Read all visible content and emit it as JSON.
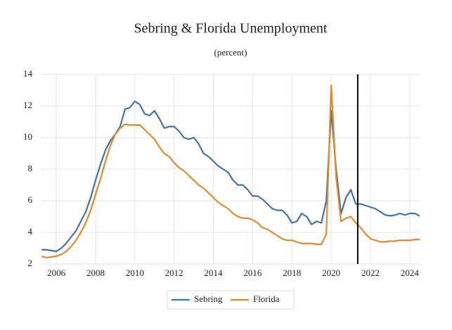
{
  "chart_data": {
    "type": "line",
    "title": "Sebring & Florida Unemployment",
    "subtitle": "(percent)",
    "x": [
      2005.25,
      2005.5,
      2005.75,
      2006,
      2006.25,
      2006.5,
      2006.75,
      2007,
      2007.25,
      2007.5,
      2007.75,
      2008,
      2008.25,
      2008.5,
      2008.75,
      2009,
      2009.25,
      2009.5,
      2009.75,
      2010,
      2010.25,
      2010.5,
      2010.75,
      2011,
      2011.25,
      2011.5,
      2011.75,
      2012,
      2012.25,
      2012.5,
      2012.75,
      2013,
      2013.25,
      2013.5,
      2013.75,
      2014,
      2014.25,
      2014.5,
      2014.75,
      2015,
      2015.25,
      2015.5,
      2015.75,
      2016,
      2016.25,
      2016.5,
      2016.75,
      2017,
      2017.25,
      2017.5,
      2017.75,
      2018,
      2018.25,
      2018.5,
      2018.75,
      2019,
      2019.25,
      2019.5,
      2019.75,
      2020,
      2020.25,
      2020.5,
      2020.75,
      2021,
      2021.25,
      2021.5,
      2021.75,
      2022,
      2022.25,
      2022.5,
      2022.75,
      2023,
      2023.25,
      2023.5,
      2023.75,
      2024,
      2024.25,
      2024.5
    ],
    "series": [
      {
        "name": "Sebring",
        "color": "#4472a8",
        "values": [
          2.9,
          2.9,
          2.85,
          2.8,
          3.0,
          3.3,
          3.7,
          4.1,
          4.7,
          5.3,
          6.2,
          7.3,
          8.3,
          9.2,
          9.8,
          10.2,
          10.7,
          11.8,
          11.9,
          12.3,
          12.1,
          11.5,
          11.4,
          11.7,
          11.2,
          10.6,
          10.7,
          10.7,
          10.4,
          10.0,
          9.9,
          10.0,
          9.6,
          9.0,
          8.8,
          8.5,
          8.2,
          8.0,
          7.8,
          7.3,
          7.0,
          7.0,
          6.7,
          6.3,
          6.3,
          6.1,
          5.8,
          5.5,
          5.4,
          5.4,
          5.1,
          4.6,
          4.7,
          5.2,
          5.0,
          4.5,
          4.7,
          4.6,
          6.0,
          11.7,
          8.0,
          5.2,
          6.2,
          6.7,
          5.8,
          5.8,
          5.7,
          5.6,
          5.5,
          5.3,
          5.1,
          5.05,
          5.1,
          5.2,
          5.1,
          5.2,
          5.2,
          5.05
        ]
      },
      {
        "name": "Florida",
        "color": "#e0892e",
        "values": [
          2.5,
          2.4,
          2.45,
          2.5,
          2.6,
          2.8,
          3.1,
          3.5,
          4.0,
          4.6,
          5.4,
          6.4,
          7.4,
          8.5,
          9.5,
          10.2,
          10.6,
          10.85,
          10.8,
          10.8,
          10.8,
          10.5,
          10.2,
          9.9,
          9.4,
          9.0,
          8.8,
          8.4,
          8.1,
          7.9,
          7.6,
          7.3,
          7.0,
          6.8,
          6.5,
          6.2,
          5.9,
          5.7,
          5.5,
          5.2,
          5.0,
          4.9,
          4.9,
          4.8,
          4.6,
          4.3,
          4.2,
          4.0,
          3.8,
          3.6,
          3.5,
          3.5,
          3.4,
          3.3,
          3.3,
          3.3,
          3.25,
          3.25,
          3.9,
          13.3,
          7.5,
          4.7,
          4.9,
          5.0,
          4.6,
          4.3,
          3.9,
          3.6,
          3.5,
          3.4,
          3.4,
          3.45,
          3.45,
          3.5,
          3.5,
          3.5,
          3.55,
          3.55
        ]
      }
    ],
    "xlim": [
      2005.21,
      2024.54
    ],
    "xticks": [
      2006,
      2008,
      2010,
      2012,
      2014,
      2016,
      2018,
      2020,
      2022,
      2024
    ],
    "ylim": [
      2,
      14
    ],
    "yticks": [
      2,
      4,
      6,
      8,
      10,
      12,
      14
    ],
    "grid": true,
    "vline_x": 2021.35,
    "legend": "bottom"
  }
}
